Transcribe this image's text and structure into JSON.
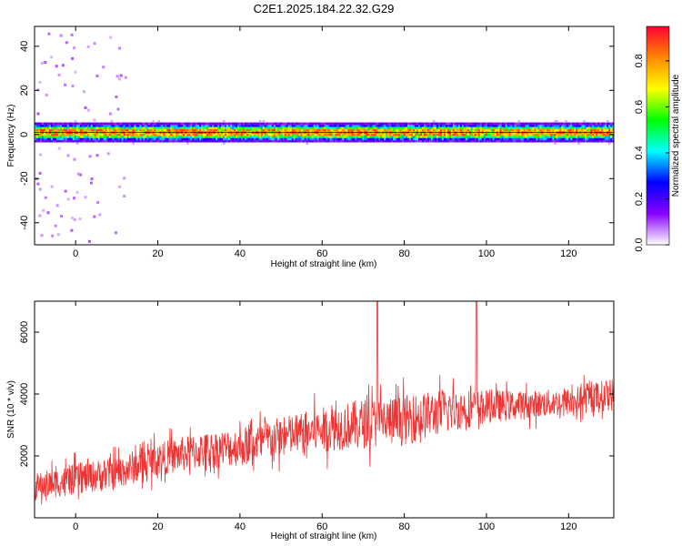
{
  "title": "C2E1.2025.184.22.32.G29",
  "chart_data": [
    {
      "type": "heatmap",
      "xlabel": "Height of straight line (km)",
      "ylabel": "Frequency (Hz)",
      "xlim": [
        -10,
        131
      ],
      "ylim": [
        -50,
        49
      ],
      "xticks": [
        0,
        20,
        40,
        60,
        80,
        100,
        120
      ],
      "yticks": [
        -40,
        -20,
        0,
        20,
        40
      ],
      "description_band": {
        "center_hz": 1,
        "halfwidth_hz": 3
      },
      "colorbar": {
        "label": "Normalized spectral amplitude",
        "range": [
          0,
          0.95
        ],
        "ticks": [
          0.0,
          0.2,
          0.4,
          0.6,
          0.8
        ],
        "tick_labels": [
          "0.0",
          "0.2",
          "0.4",
          "0.6",
          "0.8"
        ],
        "colormap": [
          "#ffffff",
          "#8800ff",
          "#0000ff",
          "#00ffff",
          "#00ff00",
          "#ffff00",
          "#ff8800",
          "#ff0033"
        ]
      }
    },
    {
      "type": "line",
      "xlabel": "Height of straight line (km)",
      "ylabel": "SNR (10 * v/v)",
      "xlim": [
        -10,
        131
      ],
      "ylim": [
        0,
        7000
      ],
      "xticks": [
        0,
        20,
        40,
        60,
        80,
        100,
        120
      ],
      "yticks": [
        2000,
        4000,
        6000
      ],
      "color": "#ee3333",
      "series": [
        {
          "x": [
            -10,
            0,
            10,
            20,
            30,
            40,
            50,
            60,
            70,
            73.5,
            80,
            90,
            97.5,
            100,
            110,
            120,
            131
          ],
          "values": [
            1000,
            1250,
            1450,
            1900,
            2150,
            2300,
            2600,
            2850,
            3050,
            7000,
            3150,
            3450,
            7000,
            3600,
            3650,
            3750,
            4000
          ],
          "spread": [
            500,
            550,
            600,
            600,
            650,
            700,
            750,
            800,
            900,
            900,
            900,
            800,
            800,
            600,
            500,
            500,
            600
          ]
        }
      ]
    }
  ]
}
